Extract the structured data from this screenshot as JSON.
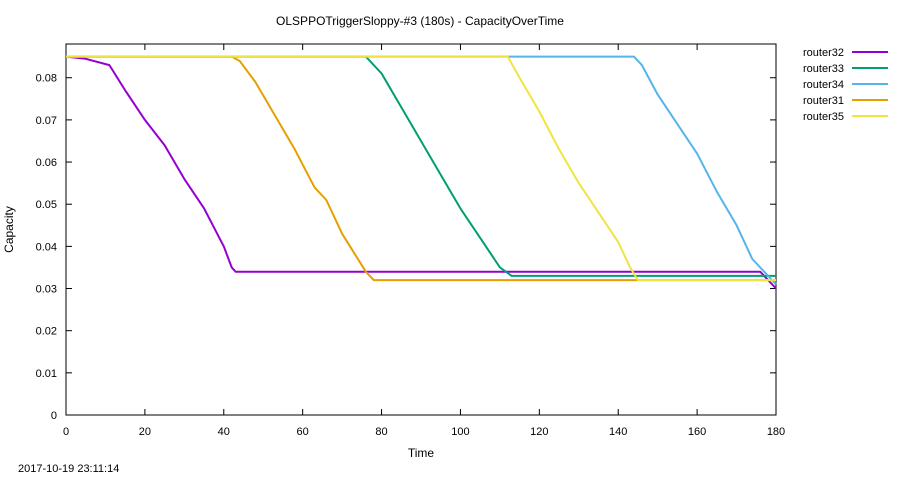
{
  "chart_data": {
    "type": "line",
    "title": "OLSPPOTriggerSloppy-#3 (180s) - CapacityOverTime",
    "xlabel": "Time",
    "ylabel": "Capacity",
    "xlim": [
      0,
      180
    ],
    "ylim": [
      0,
      0.088
    ],
    "xticks": [
      0,
      20,
      40,
      60,
      80,
      100,
      120,
      140,
      160,
      180
    ],
    "yticks": [
      0,
      0.01,
      0.02,
      0.03,
      0.04,
      0.05,
      0.06,
      0.07,
      0.08
    ],
    "xtick_labels": [
      "0",
      "20",
      "40",
      "60",
      "80",
      "100",
      "120",
      "140",
      "160",
      "180"
    ],
    "ytick_labels": [
      "0",
      "0.01",
      "0.02",
      "0.03",
      "0.04",
      "0.05",
      "0.06",
      "0.07",
      "0.08"
    ],
    "grid": false,
    "legend_position": "outside-top-right",
    "series": [
      {
        "name": "router32",
        "color": "#9400d3",
        "points": [
          [
            0,
            0.085
          ],
          [
            5,
            0.0845
          ],
          [
            11,
            0.083
          ],
          [
            15,
            0.077
          ],
          [
            20,
            0.07
          ],
          [
            25,
            0.064
          ],
          [
            30,
            0.056
          ],
          [
            35,
            0.049
          ],
          [
            40,
            0.04
          ],
          [
            42,
            0.035
          ],
          [
            43,
            0.034
          ],
          [
            100,
            0.034
          ],
          [
            176,
            0.034
          ],
          [
            178,
            0.032
          ],
          [
            180,
            0.03
          ]
        ]
      },
      {
        "name": "router33",
        "color": "#009e73",
        "points": [
          [
            0,
            0.085
          ],
          [
            76,
            0.085
          ],
          [
            80,
            0.081
          ],
          [
            85,
            0.073
          ],
          [
            90,
            0.065
          ],
          [
            95,
            0.057
          ],
          [
            100,
            0.049
          ],
          [
            105,
            0.042
          ],
          [
            110,
            0.035
          ],
          [
            113,
            0.033
          ],
          [
            180,
            0.033
          ]
        ]
      },
      {
        "name": "router34",
        "color": "#56b4e9",
        "points": [
          [
            0,
            0.085
          ],
          [
            144,
            0.085
          ],
          [
            146,
            0.083
          ],
          [
            150,
            0.076
          ],
          [
            155,
            0.069
          ],
          [
            160,
            0.062
          ],
          [
            165,
            0.053
          ],
          [
            170,
            0.045
          ],
          [
            174,
            0.037
          ],
          [
            177,
            0.034
          ],
          [
            180,
            0.031
          ]
        ]
      },
      {
        "name": "router31",
        "color": "#e69f00",
        "points": [
          [
            0,
            0.085
          ],
          [
            42,
            0.085
          ],
          [
            44,
            0.084
          ],
          [
            48,
            0.079
          ],
          [
            53,
            0.071
          ],
          [
            58,
            0.063
          ],
          [
            63,
            0.054
          ],
          [
            66,
            0.051
          ],
          [
            70,
            0.043
          ],
          [
            74,
            0.037
          ],
          [
            76,
            0.034
          ],
          [
            78,
            0.032
          ],
          [
            180,
            0.032
          ]
        ]
      },
      {
        "name": "router35",
        "color": "#f0e442",
        "points": [
          [
            0,
            0.085
          ],
          [
            112,
            0.085
          ],
          [
            115,
            0.08
          ],
          [
            120,
            0.072
          ],
          [
            125,
            0.063
          ],
          [
            130,
            0.055
          ],
          [
            135,
            0.048
          ],
          [
            140,
            0.041
          ],
          [
            143,
            0.035
          ],
          [
            145,
            0.032
          ],
          [
            180,
            0.032
          ]
        ]
      }
    ]
  },
  "footer": {
    "timestamp": "2017-10-19 23:11:14"
  }
}
